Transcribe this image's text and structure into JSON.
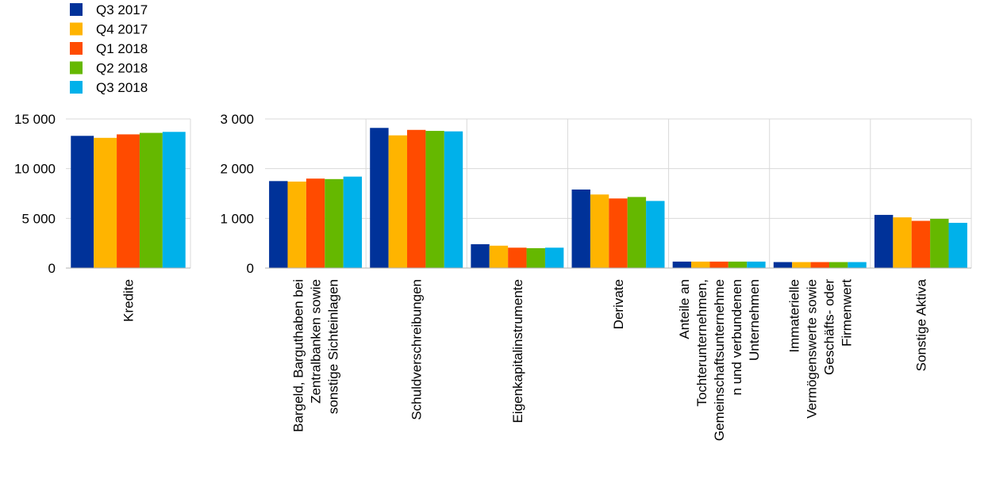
{
  "colors": {
    "Q3 2017": "#003299",
    "Q4 2017": "#FFB400",
    "Q1 2018": "#FF4B00",
    "Q2 2018": "#65B800",
    "Q3 2018": "#00B1EA",
    "grid": "#d9d9d9",
    "axis": "#b3b3b3"
  },
  "legend": [
    {
      "label": "Q3 2017",
      "color": "#003299"
    },
    {
      "label": "Q4 2017",
      "color": "#FFB400"
    },
    {
      "label": "Q1 2018",
      "color": "#FF4B00"
    },
    {
      "label": "Q2 2018",
      "color": "#65B800"
    },
    {
      "label": "Q3 2018",
      "color": "#00B1EA"
    }
  ],
  "chart_data": [
    {
      "type": "bar",
      "ylim": [
        0,
        15000
      ],
      "yticks": [
        0,
        5000,
        10000,
        15000
      ],
      "ytick_labels": [
        "0",
        "5 000",
        "10 000",
        "15 000"
      ],
      "grid": true,
      "legend_position": "top-left",
      "categories": [
        [
          "Kredite"
        ]
      ],
      "series": [
        {
          "name": "Q3 2017",
          "values": [
            13300
          ]
        },
        {
          "name": "Q4 2017",
          "values": [
            13100
          ]
        },
        {
          "name": "Q1 2018",
          "values": [
            13450
          ]
        },
        {
          "name": "Q2 2018",
          "values": [
            13600
          ]
        },
        {
          "name": "Q3 2018",
          "values": [
            13700
          ]
        }
      ]
    },
    {
      "type": "bar",
      "ylim": [
        0,
        3000
      ],
      "yticks": [
        0,
        1000,
        2000,
        3000
      ],
      "ytick_labels": [
        "0",
        "1 000",
        "2 000",
        "3 000"
      ],
      "grid": true,
      "categories": [
        [
          "Bargeld, Barguthaben bei",
          "Zentralbanken sowie",
          "sonstige Sichteinlagen"
        ],
        [
          "Schuldverschreibungen"
        ],
        [
          "Eigenkapitalinstrumente"
        ],
        [
          "Derivate"
        ],
        [
          "Anteile an",
          "Tochterunternehmen,",
          "Gemeinschaftsunternehme",
          "n und verbundenen",
          "Unternehmen"
        ],
        [
          "Immaterielle",
          "Vermögenswerte sowie",
          "Geschäfts- oder",
          "Firmenwert"
        ],
        [
          "Sonstige Aktiva"
        ]
      ],
      "series": [
        {
          "name": "Q3 2017",
          "values": [
            1750,
            2820,
            480,
            1580,
            130,
            120,
            1070
          ]
        },
        {
          "name": "Q4 2017",
          "values": [
            1740,
            2670,
            450,
            1480,
            130,
            120,
            1020
          ]
        },
        {
          "name": "Q1 2018",
          "values": [
            1800,
            2780,
            410,
            1400,
            130,
            120,
            950
          ]
        },
        {
          "name": "Q2 2018",
          "values": [
            1790,
            2760,
            400,
            1430,
            130,
            120,
            990
          ]
        },
        {
          "name": "Q3 2018",
          "values": [
            1840,
            2750,
            410,
            1350,
            130,
            120,
            910
          ]
        }
      ]
    }
  ]
}
